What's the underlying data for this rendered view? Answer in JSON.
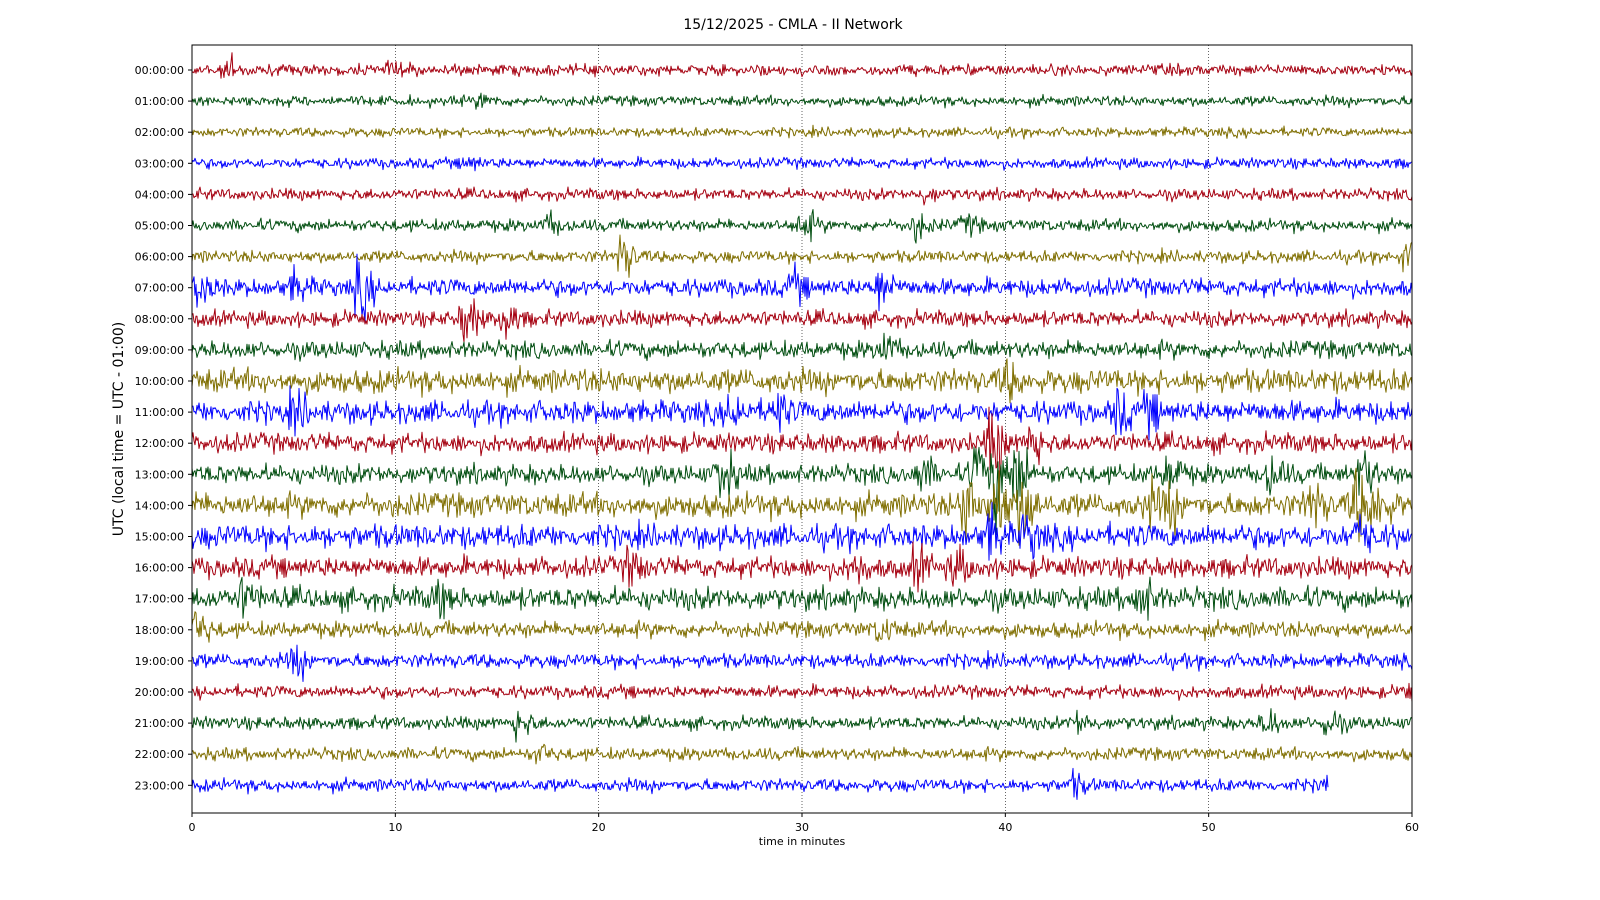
{
  "chart_data": {
    "type": "line",
    "title": "15/12/2025 - CMLA - II Network",
    "xlabel": "time in minutes",
    "ylabel": "UTC (local time = UTC - 01:00)",
    "xlim": [
      0,
      60
    ],
    "x_ticks": [
      "0",
      "10",
      "20",
      "30",
      "40",
      "50",
      "60"
    ],
    "x_tick_values": [
      0,
      10,
      20,
      30,
      40,
      50,
      60
    ],
    "grid": "vertical dotted",
    "colors": [
      "#a50010",
      "#004d0f",
      "#7f6e00",
      "#0000ff"
    ],
    "series": [
      {
        "label": "00:00:00",
        "amplitude": 0.35,
        "end_minute": 60,
        "events": [
          {
            "t": 1.7,
            "a": 0.6
          },
          {
            "t": 9.8,
            "a": 0.4
          }
        ]
      },
      {
        "label": "01:00:00",
        "amplitude": 0.32,
        "end_minute": 60,
        "events": [
          {
            "t": 14.2,
            "a": 0.4
          }
        ]
      },
      {
        "label": "02:00:00",
        "amplitude": 0.3,
        "end_minute": 60,
        "events": []
      },
      {
        "label": "03:00:00",
        "amplitude": 0.33,
        "end_minute": 60,
        "events": [
          {
            "t": 13.5,
            "a": 0.4
          }
        ]
      },
      {
        "label": "04:00:00",
        "amplitude": 0.36,
        "end_minute": 60,
        "events": [
          {
            "t": 36.0,
            "a": 0.4
          }
        ]
      },
      {
        "label": "05:00:00",
        "amplitude": 0.38,
        "end_minute": 60,
        "events": [
          {
            "t": 17.5,
            "a": 0.6
          },
          {
            "t": 30.0,
            "a": 0.9
          },
          {
            "t": 35.5,
            "a": 0.8
          },
          {
            "t": 38.0,
            "a": 0.5
          }
        ]
      },
      {
        "label": "06:00:00",
        "amplitude": 0.38,
        "end_minute": 60,
        "events": [
          {
            "t": 21.1,
            "a": 1.4
          },
          {
            "t": 59.6,
            "a": 0.7
          }
        ]
      },
      {
        "label": "07:00:00",
        "amplitude": 0.55,
        "end_minute": 60,
        "events": [
          {
            "t": 0.2,
            "a": 1.2
          },
          {
            "t": 5.0,
            "a": 0.8
          },
          {
            "t": 8.2,
            "a": 1.6
          },
          {
            "t": 29.5,
            "a": 0.8
          },
          {
            "t": 33.8,
            "a": 1.2
          }
        ]
      },
      {
        "label": "08:00:00",
        "amplitude": 0.5,
        "end_minute": 60,
        "events": [
          {
            "t": 13.4,
            "a": 1.5
          },
          {
            "t": 15.3,
            "a": 1.0
          }
        ]
      },
      {
        "label": "09:00:00",
        "amplitude": 0.55,
        "end_minute": 60,
        "events": [
          {
            "t": 34.0,
            "a": 0.8
          }
        ]
      },
      {
        "label": "10:00:00",
        "amplitude": 0.75,
        "end_minute": 60,
        "events": [
          {
            "t": 40.0,
            "a": 0.9
          }
        ]
      },
      {
        "label": "11:00:00",
        "amplitude": 0.7,
        "end_minute": 60,
        "events": [
          {
            "t": 5.0,
            "a": 0.9
          },
          {
            "t": 26.5,
            "a": 1.0
          },
          {
            "t": 28.6,
            "a": 1.1
          },
          {
            "t": 45.5,
            "a": 1.1
          },
          {
            "t": 47.0,
            "a": 0.9
          }
        ]
      },
      {
        "label": "12:00:00",
        "amplitude": 0.6,
        "end_minute": 60,
        "events": [
          {
            "t": 39.3,
            "a": 2.2
          },
          {
            "t": 41.2,
            "a": 1.3
          }
        ]
      },
      {
        "label": "13:00:00",
        "amplitude": 0.6,
        "end_minute": 60,
        "events": [
          {
            "t": 26.0,
            "a": 1.6
          },
          {
            "t": 35.8,
            "a": 1.0
          },
          {
            "t": 38.5,
            "a": 1.8
          },
          {
            "t": 39.5,
            "a": 2.4
          },
          {
            "t": 40.5,
            "a": 2.2
          },
          {
            "t": 48.0,
            "a": 1.2
          },
          {
            "t": 53.0,
            "a": 1.1
          },
          {
            "t": 57.5,
            "a": 1.4
          }
        ]
      },
      {
        "label": "14:00:00",
        "amplitude": 0.75,
        "end_minute": 60,
        "events": [
          {
            "t": 38.0,
            "a": 2.0
          },
          {
            "t": 39.5,
            "a": 2.4
          },
          {
            "t": 40.8,
            "a": 2.2
          },
          {
            "t": 47.0,
            "a": 1.0
          },
          {
            "t": 48.0,
            "a": 1.2
          },
          {
            "t": 55.0,
            "a": 1.4
          },
          {
            "t": 57.2,
            "a": 2.0
          },
          {
            "t": 58.2,
            "a": 1.6
          }
        ]
      },
      {
        "label": "15:00:00",
        "amplitude": 0.75,
        "end_minute": 60,
        "events": [
          {
            "t": 39.2,
            "a": 1.3
          },
          {
            "t": 41.0,
            "a": 1.1
          },
          {
            "t": 57.3,
            "a": 1.0
          }
        ]
      },
      {
        "label": "16:00:00",
        "amplitude": 0.65,
        "end_minute": 60,
        "events": [
          {
            "t": 21.5,
            "a": 0.9
          },
          {
            "t": 32.5,
            "a": 0.9
          },
          {
            "t": 35.6,
            "a": 1.0
          },
          {
            "t": 37.5,
            "a": 0.9
          }
        ]
      },
      {
        "label": "17:00:00",
        "amplitude": 0.7,
        "end_minute": 60,
        "events": [
          {
            "t": 2.5,
            "a": 0.9
          },
          {
            "t": 12.0,
            "a": 0.8
          },
          {
            "t": 46.6,
            "a": 1.4
          }
        ]
      },
      {
        "label": "18:00:00",
        "amplitude": 0.5,
        "end_minute": 60,
        "events": [
          {
            "t": 0.2,
            "a": 1.0
          },
          {
            "t": 33.8,
            "a": 0.7
          }
        ]
      },
      {
        "label": "19:00:00",
        "amplitude": 0.45,
        "end_minute": 60,
        "events": [
          {
            "t": 5.0,
            "a": 0.9
          }
        ]
      },
      {
        "label": "20:00:00",
        "amplitude": 0.4,
        "end_minute": 60,
        "events": [
          {
            "t": 59.8,
            "a": 0.6
          }
        ]
      },
      {
        "label": "21:00:00",
        "amplitude": 0.4,
        "end_minute": 60,
        "events": [
          {
            "t": 16.0,
            "a": 0.9
          },
          {
            "t": 43.5,
            "a": 0.7
          },
          {
            "t": 52.8,
            "a": 0.8
          },
          {
            "t": 55.8,
            "a": 0.9
          }
        ]
      },
      {
        "label": "22:00:00",
        "amplitude": 0.4,
        "end_minute": 60,
        "events": [
          {
            "t": 17.0,
            "a": 0.5
          }
        ]
      },
      {
        "label": "23:00:00",
        "amplitude": 0.4,
        "end_minute": 55.9,
        "events": [
          {
            "t": 43.3,
            "a": 0.6
          },
          {
            "t": 55.8,
            "a": 0.8
          }
        ]
      }
    ]
  }
}
